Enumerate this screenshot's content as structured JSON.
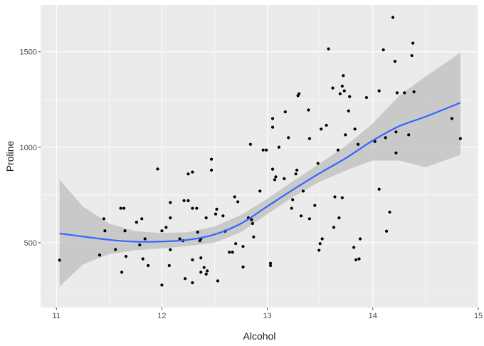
{
  "chart_data": {
    "type": "scatter",
    "xlabel": "Alcohol",
    "ylabel": "Proline",
    "xlim": [
      10.85,
      15.0
    ],
    "ylim": [
      160,
      1745
    ],
    "x_ticks": [
      11,
      12,
      13,
      14,
      15
    ],
    "y_ticks": [
      500,
      1000,
      1500
    ],
    "x_tick_labels": [
      "11",
      "12",
      "13",
      "14",
      "15"
    ],
    "y_tick_labels": [
      "500",
      "1000",
      "1500"
    ],
    "grid": true,
    "legend": "none",
    "colors": {
      "panel_background": "#ebebeb",
      "grid": "#ffffff",
      "points": "#000000",
      "smooth_line": "#3366ff",
      "ribbon": "#bdbdbd"
    },
    "points": [
      [
        11.03,
        408
      ],
      [
        11.41,
        435
      ],
      [
        11.45,
        625
      ],
      [
        11.46,
        562
      ],
      [
        11.56,
        464
      ],
      [
        11.61,
        680
      ],
      [
        11.62,
        345
      ],
      [
        11.64,
        680
      ],
      [
        11.65,
        562
      ],
      [
        11.66,
        428
      ],
      [
        11.76,
        607
      ],
      [
        11.79,
        488
      ],
      [
        11.81,
        625
      ],
      [
        11.82,
        415
      ],
      [
        11.84,
        520
      ],
      [
        11.87,
        380
      ],
      [
        11.96,
        886
      ],
      [
        12.0,
        278
      ],
      [
        12.0,
        562
      ],
      [
        12.04,
        580
      ],
      [
        12.07,
        380
      ],
      [
        12.08,
        463
      ],
      [
        12.08,
        710
      ],
      [
        12.08,
        630
      ],
      [
        12.17,
        520
      ],
      [
        12.2,
        510
      ],
      [
        12.21,
        720
      ],
      [
        12.22,
        312
      ],
      [
        12.25,
        860
      ],
      [
        12.25,
        720
      ],
      [
        12.29,
        870
      ],
      [
        12.29,
        680
      ],
      [
        12.29,
        290
      ],
      [
        12.29,
        410
      ],
      [
        12.33,
        680
      ],
      [
        12.34,
        555
      ],
      [
        12.36,
        510
      ],
      [
        12.37,
        345
      ],
      [
        12.37,
        520
      ],
      [
        12.37,
        420
      ],
      [
        12.4,
        370
      ],
      [
        12.42,
        630
      ],
      [
        12.42,
        335
      ],
      [
        12.43,
        352
      ],
      [
        12.47,
        880
      ],
      [
        12.47,
        937
      ],
      [
        12.51,
        650
      ],
      [
        12.52,
        675
      ],
      [
        12.53,
        300
      ],
      [
        12.58,
        640
      ],
      [
        12.6,
        560
      ],
      [
        12.64,
        450
      ],
      [
        12.67,
        450
      ],
      [
        12.69,
        740
      ],
      [
        12.7,
        495
      ],
      [
        12.72,
        714
      ],
      [
        12.77,
        372
      ],
      [
        12.77,
        480
      ],
      [
        12.82,
        630
      ],
      [
        12.84,
        1015
      ],
      [
        12.85,
        620
      ],
      [
        12.86,
        600
      ],
      [
        12.87,
        530
      ],
      [
        12.93,
        770
      ],
      [
        12.96,
        985
      ],
      [
        12.99,
        985
      ],
      [
        13.03,
        392
      ],
      [
        13.03,
        380
      ],
      [
        13.05,
        1150
      ],
      [
        13.05,
        1105
      ],
      [
        13.05,
        885
      ],
      [
        13.07,
        830
      ],
      [
        13.08,
        845
      ],
      [
        13.11,
        1000
      ],
      [
        13.16,
        835
      ],
      [
        13.17,
        1185
      ],
      [
        13.2,
        1050
      ],
      [
        13.23,
        680
      ],
      [
        13.24,
        725
      ],
      [
        13.27,
        860
      ],
      [
        13.28,
        880
      ],
      [
        13.29,
        1270
      ],
      [
        13.3,
        1280
      ],
      [
        13.32,
        640
      ],
      [
        13.34,
        770
      ],
      [
        13.39,
        1195
      ],
      [
        13.4,
        1045
      ],
      [
        13.4,
        625
      ],
      [
        13.45,
        695
      ],
      [
        13.48,
        915
      ],
      [
        13.49,
        460
      ],
      [
        13.5,
        495
      ],
      [
        13.51,
        1095
      ],
      [
        13.52,
        520
      ],
      [
        13.56,
        1115
      ],
      [
        13.58,
        1515
      ],
      [
        13.62,
        1310
      ],
      [
        13.63,
        580
      ],
      [
        13.64,
        740
      ],
      [
        13.67,
        985
      ],
      [
        13.68,
        630
      ],
      [
        13.69,
        1280
      ],
      [
        13.71,
        1320
      ],
      [
        13.71,
        735
      ],
      [
        13.72,
        1375
      ],
      [
        13.73,
        1295
      ],
      [
        13.74,
        1065
      ],
      [
        13.77,
        1190
      ],
      [
        13.78,
        1265
      ],
      [
        13.82,
        475
      ],
      [
        13.83,
        1095
      ],
      [
        13.84,
        410
      ],
      [
        13.86,
        1015
      ],
      [
        13.87,
        415
      ],
      [
        13.88,
        520
      ],
      [
        13.94,
        1260
      ],
      [
        14.02,
        1030
      ],
      [
        14.06,
        780
      ],
      [
        14.06,
        1295
      ],
      [
        14.1,
        1510
      ],
      [
        14.12,
        1050
      ],
      [
        14.13,
        560
      ],
      [
        14.16,
        660
      ],
      [
        14.19,
        1680
      ],
      [
        14.21,
        1450
      ],
      [
        14.22,
        1080
      ],
      [
        14.22,
        970
      ],
      [
        14.23,
        1285
      ],
      [
        14.3,
        1285
      ],
      [
        14.34,
        1065
      ],
      [
        14.37,
        1480
      ],
      [
        14.38,
        1545
      ],
      [
        14.39,
        1290
      ],
      [
        14.75,
        1150
      ],
      [
        14.83,
        1045
      ]
    ],
    "smooth": [
      [
        11.03,
        548
      ],
      [
        11.5,
        515
      ],
      [
        11.75,
        505
      ],
      [
        12.0,
        506
      ],
      [
        12.25,
        515
      ],
      [
        12.5,
        543
      ],
      [
        12.75,
        600
      ],
      [
        13.0,
        690
      ],
      [
        13.25,
        780
      ],
      [
        13.5,
        865
      ],
      [
        13.75,
        945
      ],
      [
        14.0,
        1035
      ],
      [
        14.25,
        1110
      ],
      [
        14.5,
        1160
      ],
      [
        14.83,
        1233
      ]
    ],
    "ribbon_lower": [
      [
        11.03,
        270
      ],
      [
        11.25,
        385
      ],
      [
        11.5,
        440
      ],
      [
        11.75,
        460
      ],
      [
        12.0,
        470
      ],
      [
        12.25,
        482
      ],
      [
        12.5,
        500
      ],
      [
        12.75,
        555
      ],
      [
        13.0,
        650
      ],
      [
        13.25,
        742
      ],
      [
        13.5,
        820
      ],
      [
        13.75,
        880
      ],
      [
        14.0,
        930
      ],
      [
        14.25,
        930
      ],
      [
        14.5,
        895
      ],
      [
        14.83,
        960
      ]
    ],
    "ribbon_upper": [
      [
        11.03,
        830
      ],
      [
        11.25,
        690
      ],
      [
        11.5,
        600
      ],
      [
        11.75,
        560
      ],
      [
        12.0,
        550
      ],
      [
        12.25,
        555
      ],
      [
        12.5,
        585
      ],
      [
        12.75,
        645
      ],
      [
        13.0,
        730
      ],
      [
        13.25,
        825
      ],
      [
        13.5,
        915
      ],
      [
        13.75,
        1010
      ],
      [
        14.0,
        1125
      ],
      [
        14.25,
        1270
      ],
      [
        14.5,
        1370
      ],
      [
        14.83,
        1495
      ]
    ]
  }
}
